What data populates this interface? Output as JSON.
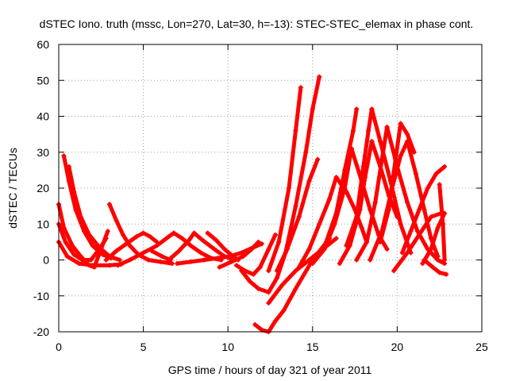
{
  "chart_data": {
    "type": "scatter",
    "title": "dSTEC Iono. truth (mssc, Lon=270, Lat=30, h=-13): STEC-STEC_elemax in phase cont.",
    "xlabel": "GPS time / hours of day 321 of year 2011",
    "ylabel": "dSTEC  / TECUs",
    "xlim": [
      0,
      25
    ],
    "ylim": [
      -20,
      60
    ],
    "xticks": [
      0,
      5,
      10,
      15,
      20,
      25
    ],
    "yticks": [
      -20,
      -10,
      0,
      10,
      20,
      30,
      40,
      50,
      60
    ],
    "grid": true,
    "marker": "+",
    "color": "#ff0000",
    "series": [
      {
        "x": [
          0.0,
          0.3,
          0.8,
          1.3,
          1.8,
          2.1
        ],
        "y": [
          15.5,
          9,
          4,
          1,
          -1.5,
          -2
        ]
      },
      {
        "x": [
          2.1,
          2.5,
          2.9
        ],
        "y": [
          -2,
          3,
          8
        ]
      },
      {
        "x": [
          0.0,
          0.4,
          0.9,
          1.4,
          1.9
        ],
        "y": [
          10,
          5,
          1.5,
          0,
          0
        ]
      },
      {
        "x": [
          1.9,
          2.4,
          2.8
        ],
        "y": [
          0,
          3,
          6
        ]
      },
      {
        "x": [
          0.0,
          0.5,
          1.2,
          2.0,
          3.0,
          3.7
        ],
        "y": [
          5,
          1,
          -1,
          -1.5,
          -1.5,
          -1.2
        ]
      },
      {
        "x": [
          0.3,
          0.6,
          1.0,
          1.5,
          2.0,
          2.6,
          3.1
        ],
        "y": [
          29,
          22,
          14,
          8,
          4,
          1.5,
          0.5
        ]
      },
      {
        "x": [
          0.6,
          0.9,
          1.3,
          1.8,
          2.4,
          3.0,
          3.6
        ],
        "y": [
          26,
          19,
          12,
          7,
          3.5,
          1,
          0
        ]
      },
      {
        "x": [
          3.0,
          3.4,
          3.8,
          4.2,
          4.7,
          5.3,
          6.0,
          6.7
        ],
        "y": [
          15.5,
          11,
          7,
          4,
          1.5,
          0,
          -0.5,
          -1
        ]
      },
      {
        "x": [
          2.8,
          3.4,
          4.0,
          4.6,
          5.0
        ],
        "y": [
          0,
          2.5,
          4.5,
          6.5,
          7.5
        ]
      },
      {
        "x": [
          5.0,
          5.4,
          5.8
        ],
        "y": [
          7.5,
          6.5,
          5
        ]
      },
      {
        "x": [
          3.5,
          4.2,
          5.0,
          5.8,
          6.5,
          6.8
        ],
        "y": [
          -1.5,
          0,
          2,
          4,
          6.5,
          7.5
        ]
      },
      {
        "x": [
          5.5,
          6.1,
          6.6
        ],
        "y": [
          2.5,
          1,
          0
        ]
      },
      {
        "x": [
          6.8,
          7.3,
          7.8,
          8.4,
          9.0,
          9.6
        ],
        "y": [
          7.5,
          6,
          4,
          2,
          0.5,
          0
        ]
      },
      {
        "x": [
          6.5,
          7.1,
          7.7,
          8.0
        ],
        "y": [
          0,
          2.5,
          5.5,
          7.5
        ]
      },
      {
        "x": [
          8.0,
          8.5,
          9.2,
          9.8,
          10.4
        ],
        "y": [
          7.5,
          5.5,
          3,
          1,
          0
        ]
      },
      {
        "x": [
          8.8,
          9.3,
          9.8,
          10.3,
          10.6
        ],
        "y": [
          7.5,
          5.5,
          3,
          1,
          0
        ]
      },
      {
        "x": [
          7.0,
          7.8,
          8.6,
          9.4,
          10.1,
          10.8,
          11.5,
          12.0
        ],
        "y": [
          -1,
          -0.5,
          0,
          0.5,
          1,
          2,
          3.5,
          4.5
        ]
      },
      {
        "x": [
          9.5,
          10.2,
          10.9,
          11.4,
          11.8
        ],
        "y": [
          -2,
          -0.5,
          1,
          3,
          5
        ]
      },
      {
        "x": [
          10.5,
          11.0,
          11.5,
          11.9,
          12.4,
          12.8
        ],
        "y": [
          -1.5,
          -3,
          -4,
          -2,
          3,
          7
        ]
      },
      {
        "x": [
          10.8,
          11.3,
          11.8,
          12.4,
          12.9,
          13.2
        ],
        "y": [
          -3,
          -6,
          -8,
          -9,
          -5,
          0
        ]
      },
      {
        "x": [
          12.4,
          13.2,
          14.0,
          14.8,
          15.6,
          16.4
        ],
        "y": [
          -12,
          -7,
          -3,
          0,
          3,
          6
        ]
      },
      {
        "x": [
          11.6,
          12.0,
          12.4,
          12.8,
          13.3,
          14.0,
          15.0,
          16.0
        ],
        "y": [
          -18,
          -19.5,
          -20,
          -17,
          -14,
          -8,
          0,
          6
        ]
      },
      {
        "x": [
          12.4,
          13.0,
          13.6,
          14.0,
          14.3
        ],
        "y": [
          -3,
          5,
          20,
          36,
          48
        ]
      },
      {
        "x": [
          12.9,
          13.4,
          14.0,
          14.6,
          15.0,
          15.4
        ],
        "y": [
          -5,
          2,
          15,
          30,
          42,
          51
        ]
      },
      {
        "x": [
          12.9,
          13.5,
          14.2,
          14.8,
          15.3
        ],
        "y": [
          -3,
          3,
          12,
          22,
          28
        ]
      },
      {
        "x": [
          14.2,
          14.8,
          15.4,
          16.0,
          16.4
        ],
        "y": [
          -2,
          3,
          10,
          17,
          23
        ]
      },
      {
        "x": [
          15.0,
          15.7,
          16.3,
          16.9,
          17.3
        ],
        "y": [
          -1,
          3,
          10,
          20,
          31
        ]
      },
      {
        "x": [
          16.4,
          17.0,
          17.5,
          17.9,
          18.2
        ],
        "y": [
          23,
          19,
          14,
          9,
          5
        ]
      },
      {
        "x": [
          15.8,
          16.4,
          16.9,
          17.4,
          17.6
        ],
        "y": [
          5,
          13,
          25,
          36,
          42
        ]
      },
      {
        "x": [
          17.3,
          17.9,
          18.4,
          18.9,
          19.4
        ],
        "y": [
          31,
          22,
          14,
          7,
          3
        ]
      },
      {
        "x": [
          16.6,
          17.2,
          17.8,
          18.1,
          18.5
        ],
        "y": [
          -1,
          4,
          14,
          23,
          33
        ]
      },
      {
        "x": [
          18.5,
          19.0,
          19.5,
          20.0
        ],
        "y": [
          33,
          26,
          18,
          12
        ]
      },
      {
        "x": [
          17.0,
          17.6,
          18.0,
          18.3,
          18.5
        ],
        "y": [
          4,
          12,
          26,
          36,
          42
        ]
      },
      {
        "x": [
          18.5,
          19.0,
          19.6,
          20.2,
          20.8
        ],
        "y": [
          42,
          33,
          22,
          10,
          2
        ]
      },
      {
        "x": [
          17.6,
          18.2,
          18.7,
          19.1,
          19.4
        ],
        "y": [
          0,
          5,
          16,
          28,
          37
        ]
      },
      {
        "x": [
          19.4,
          20.0,
          20.6,
          21.2,
          21.8,
          22.4,
          22.8
        ],
        "y": [
          37,
          26,
          16,
          8,
          3,
          0,
          -1
        ]
      },
      {
        "x": [
          19.0,
          19.5,
          19.9,
          20.2,
          20.6,
          21.0
        ],
        "y": [
          5,
          14,
          28,
          38,
          35,
          30
        ]
      },
      {
        "x": [
          18.4,
          19.1,
          19.7,
          20.2,
          20.6
        ],
        "y": [
          0,
          8,
          20,
          29,
          33
        ]
      },
      {
        "x": [
          20.6,
          21.1,
          21.6,
          22.0,
          22.4
        ],
        "y": [
          33,
          24,
          14,
          6,
          1
        ]
      },
      {
        "x": [
          20.3,
          20.8,
          21.3,
          21.8,
          22.3,
          22.8
        ],
        "y": [
          2,
          8,
          14,
          20,
          24,
          26
        ]
      },
      {
        "x": [
          19.8,
          20.6,
          21.3,
          22.0,
          22.6
        ],
        "y": [
          -3,
          2,
          7,
          12,
          13
        ]
      },
      {
        "x": [
          21.5,
          22.0,
          22.4,
          22.8
        ],
        "y": [
          -1,
          3,
          9,
          13
        ]
      },
      {
        "x": [
          22.5,
          22.7,
          22.8
        ],
        "y": [
          21,
          10,
          0
        ]
      },
      {
        "x": [
          21.6,
          22.1,
          22.5,
          22.9
        ],
        "y": [
          0,
          -2,
          -3.5,
          -4
        ]
      }
    ]
  }
}
